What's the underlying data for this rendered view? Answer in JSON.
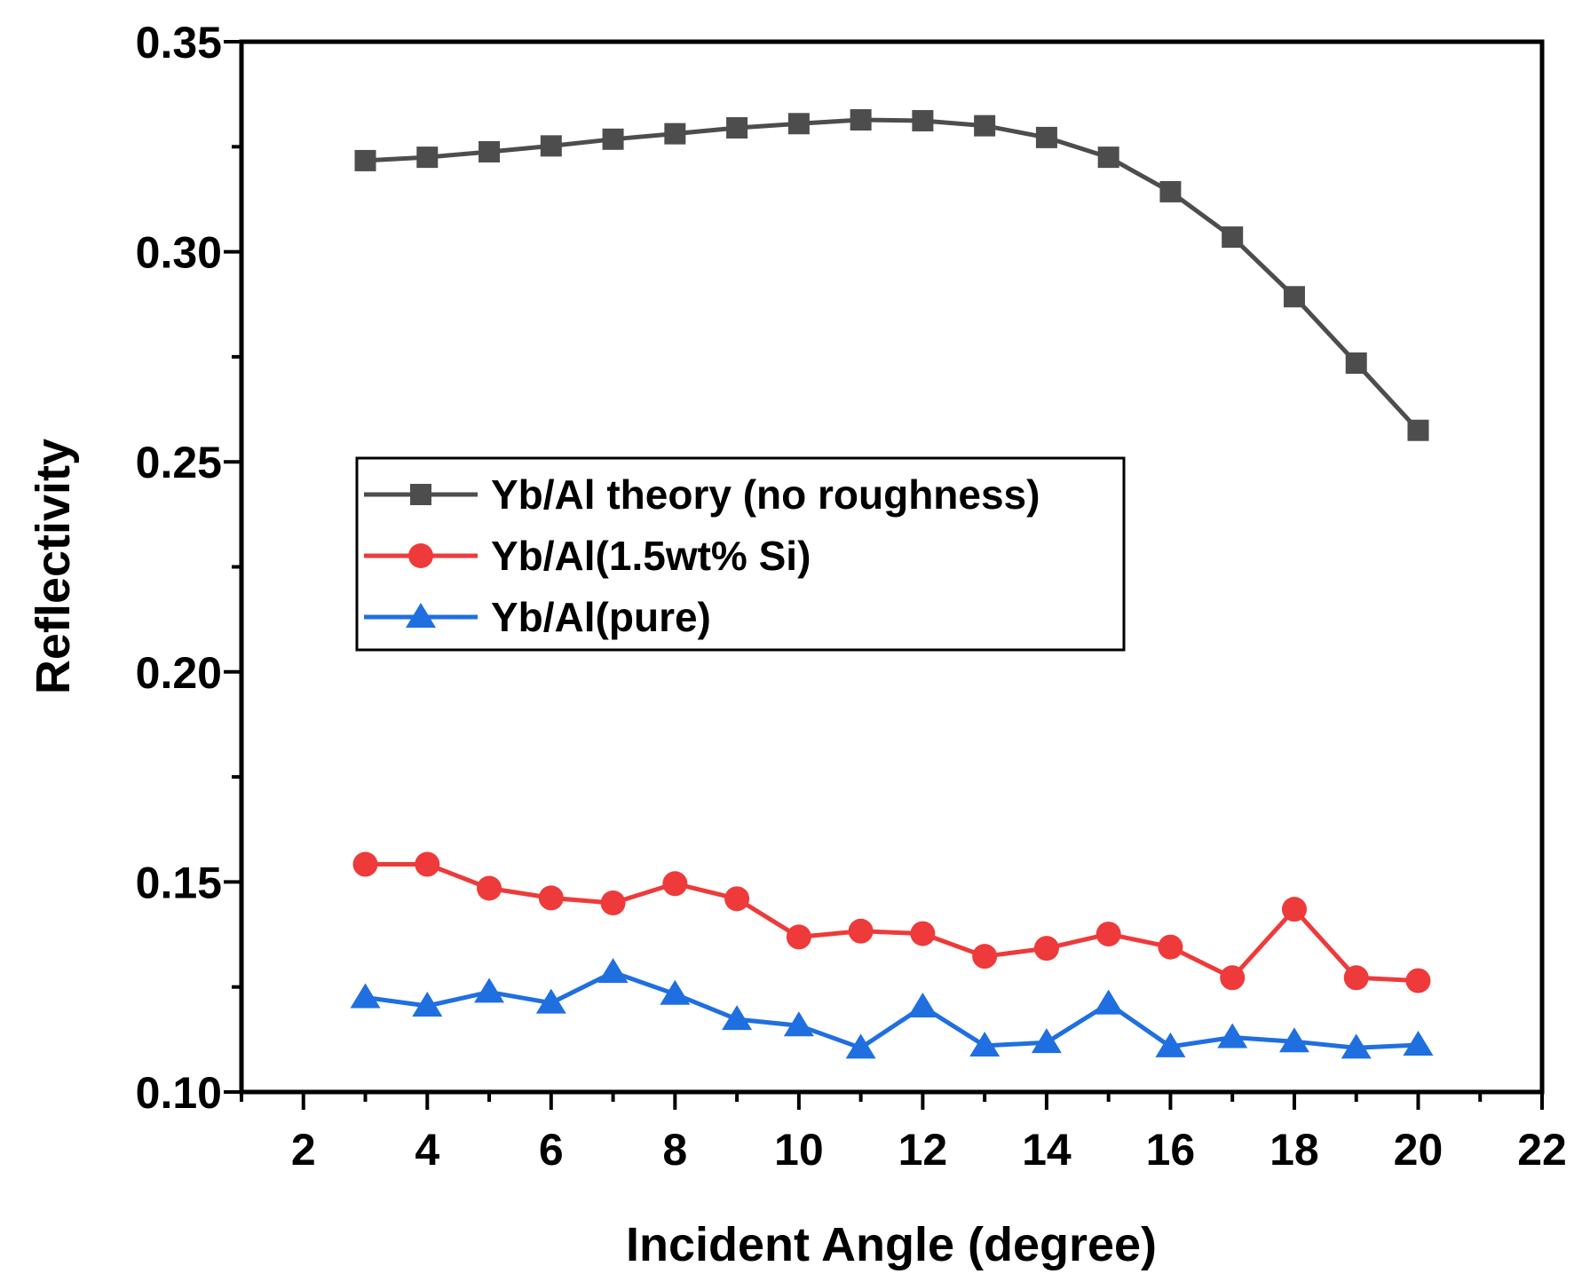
{
  "chart_data": {
    "type": "line",
    "title": "",
    "xlabel": "Incident Angle (degree)",
    "ylabel": "Reflectivity",
    "xlim": [
      1,
      22
    ],
    "ylim": [
      0.1,
      0.35
    ],
    "x_ticks": [
      2,
      4,
      6,
      8,
      10,
      12,
      14,
      16,
      18,
      20,
      22
    ],
    "y_ticks": [
      0.1,
      0.15,
      0.2,
      0.25,
      0.3,
      0.35
    ],
    "x_tick_labels": [
      "2",
      "4",
      "6",
      "8",
      "10",
      "12",
      "14",
      "16",
      "18",
      "20",
      "22"
    ],
    "y_tick_labels": [
      "0.10",
      "0.15",
      "0.20",
      "0.25",
      "0.30",
      "0.35"
    ],
    "grid": false,
    "legend_position": "center-left",
    "x": [
      3,
      4,
      5,
      6,
      7,
      8,
      9,
      10,
      11,
      12,
      13,
      14,
      15,
      16,
      17,
      18,
      19,
      20
    ],
    "series": [
      {
        "name": "Yb/Al theory (no roughness)",
        "color": "#4d4d4d",
        "marker": "square",
        "values": [
          0.3217,
          0.3225,
          0.3238,
          0.3252,
          0.3268,
          0.3281,
          0.3295,
          0.3305,
          0.3314,
          0.3312,
          0.33,
          0.3272,
          0.3225,
          0.3143,
          0.3035,
          0.2893,
          0.2735,
          0.2575
        ]
      },
      {
        "name": "Yb/Al(1.5wt% Si)",
        "color": "#ee3a3a",
        "marker": "circle",
        "values": [
          0.1542,
          0.1542,
          0.1485,
          0.1462,
          0.145,
          0.1496,
          0.146,
          0.1369,
          0.1383,
          0.1377,
          0.1323,
          0.1342,
          0.1376,
          0.1345,
          0.1272,
          0.1435,
          0.1272,
          0.1265
        ]
      },
      {
        "name": "Yb/Al(pure)",
        "color": "#1f6fe0",
        "marker": "triangle",
        "values": [
          0.1225,
          0.1205,
          0.1238,
          0.1212,
          0.1285,
          0.1233,
          0.1173,
          0.1158,
          0.1105,
          0.1203,
          0.111,
          0.1118,
          0.121,
          0.1108,
          0.113,
          0.112,
          0.1105,
          0.1112
        ]
      }
    ]
  }
}
